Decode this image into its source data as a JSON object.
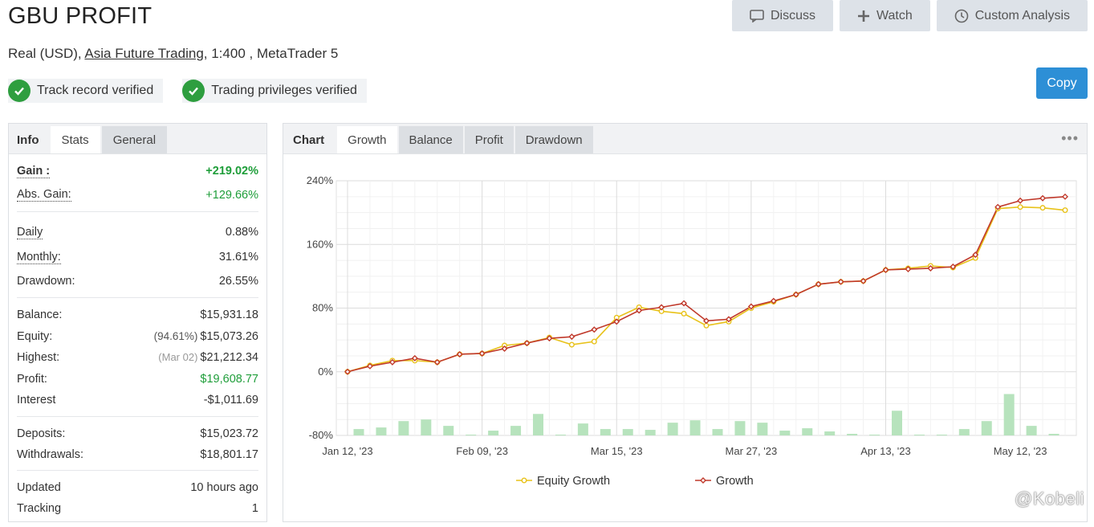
{
  "header": {
    "title": "GBU PROFIT",
    "account_type": "Real (USD),",
    "broker": "Asia Future Trading",
    "leverage_platform": ", 1:400 , MetaTrader 5"
  },
  "actions": {
    "discuss": "Discuss",
    "watch": "Watch",
    "custom_analysis": "Custom Analysis",
    "copy": "Copy"
  },
  "verifications": {
    "track_record": "Track record verified",
    "trading_privileges": "Trading privileges verified"
  },
  "stats_tabs": {
    "label": "Info",
    "stats": "Stats",
    "general": "General"
  },
  "stats": {
    "gain_label": "Gain :",
    "gain": "+219.02%",
    "abs_gain_label": "Abs. Gain:",
    "abs_gain": "+129.66%",
    "daily_label": "Daily",
    "daily": "0.88%",
    "monthly_label": "Monthly:",
    "monthly": "31.61%",
    "drawdown_label": "Drawdown:",
    "drawdown": "26.55%",
    "balance_label": "Balance:",
    "balance": "$15,931.18",
    "equity_label": "Equity:",
    "equity_pct": "(94.61%)",
    "equity": "$15,073.26",
    "highest_label": "Highest:",
    "highest_date": "(Mar 02)",
    "highest": "$21,212.34",
    "profit_label": "Profit:",
    "profit": "$19,608.77",
    "interest_label": "Interest",
    "interest": "-$1,011.69",
    "deposits_label": "Deposits:",
    "deposits": "$15,023.72",
    "withdrawals_label": "Withdrawals:",
    "withdrawals": "$18,801.17",
    "updated_label": "Updated",
    "updated": "10 hours ago",
    "tracking_label": "Tracking",
    "tracking": "1"
  },
  "chart_tabs": {
    "label": "Chart",
    "growth": "Growth",
    "balance": "Balance",
    "profit": "Profit",
    "drawdown": "Drawdown"
  },
  "colors": {
    "growth": "#c0392b",
    "equity": "#e8c21a",
    "bars": "#b7e3bd",
    "accent": "#2d8fd6",
    "positive": "#1f9e3a"
  },
  "chart_data": {
    "type": "line",
    "title": "",
    "xlabel": "",
    "ylabel": "",
    "ylim": [
      -80,
      240
    ],
    "yticks": [
      "240%",
      "160%",
      "80%",
      "0%",
      "-80%"
    ],
    "ytick_values": [
      240,
      160,
      80,
      0,
      -80
    ],
    "xtick_labels": [
      "Jan 12, '23",
      "Feb 09, '23",
      "Mar 15, '23",
      "Mar 27, '23",
      "Apr 13, '23",
      "May 12, '23"
    ],
    "xtick_indices": [
      0,
      6,
      12,
      18,
      24,
      30
    ],
    "series": [
      {
        "name": "Equity Growth",
        "values": [
          0,
          8,
          14,
          14,
          12,
          22,
          23,
          33,
          36,
          43,
          34,
          38,
          68,
          81,
          76,
          73,
          58,
          63,
          80,
          88,
          97,
          110,
          113,
          114,
          128,
          130,
          133,
          131,
          143,
          205,
          207,
          206,
          203
        ]
      },
      {
        "name": "Growth",
        "values": [
          0,
          7,
          12,
          17,
          12,
          22,
          23,
          29,
          36,
          42,
          44,
          53,
          63,
          77,
          81,
          86,
          64,
          66,
          82,
          89,
          97,
          110,
          113,
          114,
          128,
          129,
          130,
          132,
          147,
          207,
          215,
          218,
          220
        ]
      }
    ],
    "bar_values": [
      -72,
      -70,
      -62,
      -60,
      -68,
      -79,
      -74,
      -68,
      -53,
      -79,
      -65,
      -72,
      -72,
      -73,
      -64,
      -61,
      -72,
      -62,
      -64,
      -74,
      -71,
      -75,
      -78,
      -79,
      -49,
      -79,
      -79,
      -72,
      -62,
      -28,
      -68,
      -78,
      -79
    ]
  },
  "watermark": "@Kobeli"
}
